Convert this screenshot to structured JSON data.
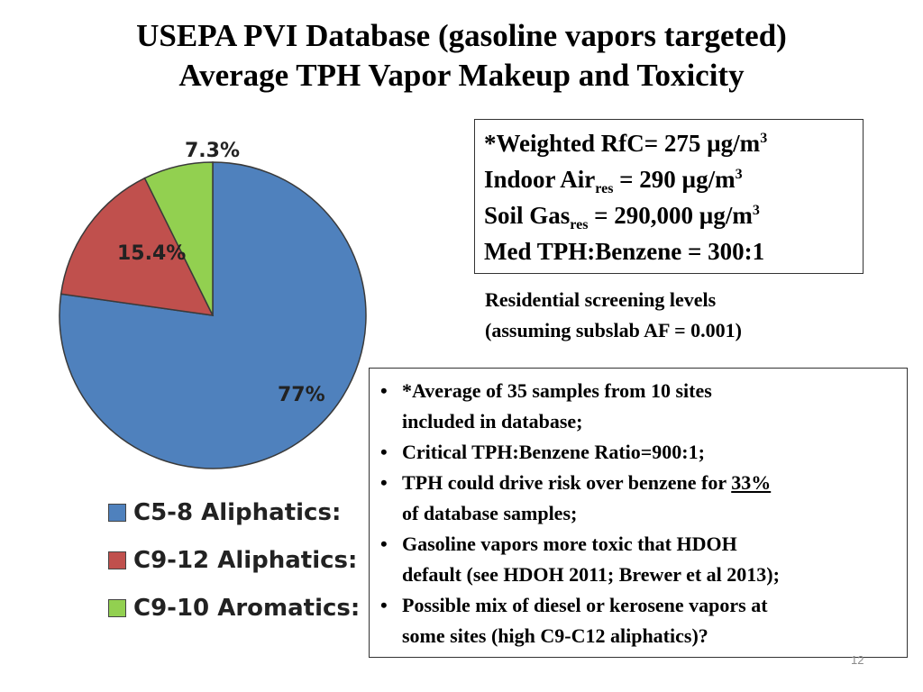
{
  "title": {
    "line1": "USEPA PVI Database (gasoline vapors targeted)",
    "line2": "Average TPH Vapor Makeup and Toxicity"
  },
  "chart_data": {
    "type": "pie",
    "title": "",
    "slices": [
      {
        "name": "C5-8 Aliphatics:",
        "value": 77,
        "label": "77%",
        "color": "#4f81bd"
      },
      {
        "name": "C9-12 Aliphatics:",
        "value": 15.4,
        "label": "15.4%",
        "color": "#c0504d"
      },
      {
        "name": "C9-10 Aromatics:",
        "value": 7.3,
        "label": "7.3%",
        "color": "#92d050"
      }
    ],
    "legend_position": "bottom"
  },
  "info_box": {
    "line1_text": "*Weighted RfC= 275 µg/m",
    "line1_sup": "3",
    "line2_pre": "Indoor Air",
    "line2_sub": "res",
    "line2_post": " = 290 µg/m",
    "line2_sup": "3",
    "line3_pre": "Soil Gas",
    "line3_sub": "res",
    "line3_post": " = 290,000 µg/m",
    "line3_sup": "3",
    "line4": "Med TPH:Benzene = 300:1"
  },
  "screening_note": {
    "line1": "Residential screening levels",
    "line2": "(assuming subslab AF = 0.001)"
  },
  "bullets": {
    "b1_line1": "*Average of 35 samples from 10 sites",
    "b1_line2": "included in database;",
    "b2": "Critical TPH:Benzene Ratio=900:1;",
    "b3_line1_pre": "TPH could drive risk over benzene for ",
    "b3_line1_u": "33%",
    "b3_line2": "of database samples;",
    "b4_line1": "Gasoline vapors more toxic that HDOH",
    "b4_line2": "default (see HDOH 2011; Brewer et al 2013);",
    "b5_line1": "Possible mix of diesel or kerosene vapors at",
    "b5_line2": "some sites (high C9-C12 aliphatics)?"
  },
  "page_number": "12"
}
